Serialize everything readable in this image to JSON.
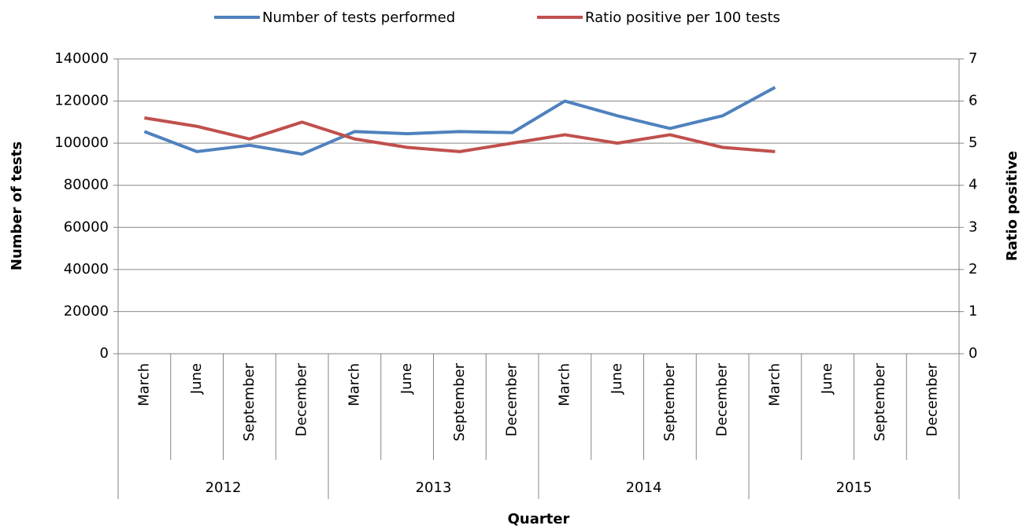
{
  "chart_data": {
    "type": "line",
    "x_label": "Quarter",
    "y_label": "Number of tests",
    "y2_label": "Ratio positive",
    "categories": [
      "March",
      "June",
      "September",
      "December",
      "March",
      "June",
      "September",
      "December",
      "March",
      "June",
      "September",
      "December",
      "March",
      "June",
      "September",
      "December"
    ],
    "category_groups": [
      "2012",
      "2013",
      "2014",
      "2015"
    ],
    "ylim": [
      0,
      140000
    ],
    "yticks": [
      0,
      20000,
      40000,
      60000,
      80000,
      100000,
      120000,
      140000
    ],
    "y2lim": [
      0,
      7
    ],
    "y2ticks": [
      0,
      1,
      2,
      3,
      4,
      5,
      6,
      7
    ],
    "grid": true,
    "legend": "top",
    "series": [
      {
        "name": "Number of tests performed",
        "color": "#4f81bd",
        "values": [
          105500,
          96000,
          99000,
          94800,
          105500,
          104500,
          105500,
          105000,
          120000,
          113000,
          107000,
          113000,
          126500,
          null,
          null,
          null
        ]
      },
      {
        "name": "Ratio positive per 100 tests",
        "color": "#c0504d",
        "axis": "y2",
        "values": [
          5.6,
          5.4,
          5.1,
          5.5,
          5.1,
          4.9,
          4.8,
          5.0,
          5.2,
          5.0,
          5.2,
          4.9,
          4.8,
          null,
          null,
          null
        ]
      }
    ]
  }
}
